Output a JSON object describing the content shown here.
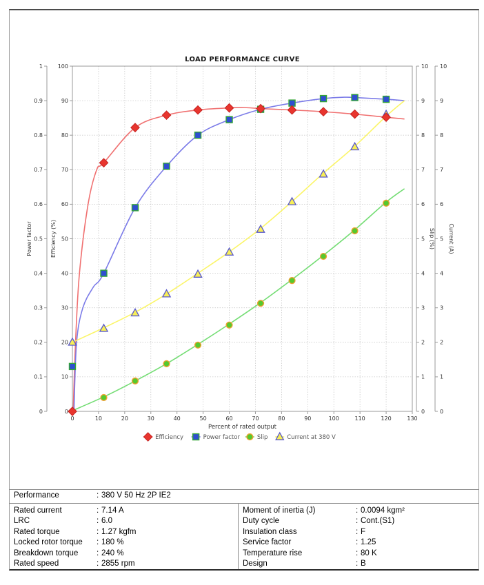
{
  "chart_data": {
    "type": "line",
    "title": "LOAD PERFORMANCE CURVE",
    "xlabel": "Percent of rated output",
    "x_range": [
      0,
      130
    ],
    "x_tick_step": 10,
    "grid": true,
    "legend_position": "bottom-center",
    "axes": {
      "left_outer": {
        "label": "Power factor",
        "range": [
          0,
          1
        ],
        "tick_step": 0.1
      },
      "left_inner": {
        "label": "Efficiency (%)",
        "range": [
          0,
          100
        ],
        "tick_step": 10
      },
      "right_inner": {
        "label": "Slip (%)",
        "range": [
          0,
          10
        ],
        "tick_step": 1
      },
      "right_outer": {
        "label": "Current (A)",
        "range": [
          0,
          10
        ],
        "tick_step": 1
      }
    },
    "series": [
      {
        "name": "Efficiency",
        "axis": "left_inner",
        "marker": "diamond",
        "line_color": "#f07070",
        "marker_fill": "#e8352e",
        "marker_stroke": "#c62321",
        "x": [
          0,
          12,
          24,
          36,
          48,
          60,
          72,
          84,
          96,
          108,
          120
        ],
        "values": [
          0,
          72,
          82.2,
          85.8,
          87.3,
          87.9,
          87.7,
          87.3,
          86.8,
          86.1,
          85.2
        ],
        "curve": [
          [
            0.3,
            0
          ],
          [
            1.2,
            20
          ],
          [
            2.7,
            40
          ],
          [
            6,
            60
          ],
          [
            9.3,
            70
          ],
          [
            12,
            72
          ],
          [
            24,
            82.2
          ],
          [
            36,
            85.8
          ],
          [
            48,
            87.3
          ],
          [
            60,
            87.9
          ],
          [
            66,
            88.0
          ],
          [
            72,
            87.7
          ],
          [
            84,
            87.3
          ],
          [
            96,
            86.8
          ],
          [
            108,
            86.1
          ],
          [
            120,
            85.2
          ],
          [
            127,
            84.7
          ]
        ]
      },
      {
        "name": "Power factor",
        "axis": "left_outer",
        "marker": "square",
        "line_color": "#7b7be8",
        "marker_fill": "#2f4ed1",
        "marker_stroke": "#35a635",
        "x": [
          0,
          12,
          24,
          36,
          48,
          60,
          72,
          84,
          96,
          108,
          120
        ],
        "values": [
          0.13,
          0.4,
          0.59,
          0.71,
          0.8,
          0.845,
          0.875,
          0.893,
          0.906,
          0.909,
          0.904
        ],
        "curve": [
          [
            0.6,
            0.0
          ],
          [
            1.6,
            0.2
          ],
          [
            4,
            0.3
          ],
          [
            8,
            0.36
          ],
          [
            12,
            0.4
          ],
          [
            24,
            0.59
          ],
          [
            36,
            0.71
          ],
          [
            48,
            0.8
          ],
          [
            60,
            0.845
          ],
          [
            72,
            0.875
          ],
          [
            84,
            0.893
          ],
          [
            96,
            0.906
          ],
          [
            104,
            0.91
          ],
          [
            108,
            0.909
          ],
          [
            120,
            0.904
          ],
          [
            127,
            0.9
          ]
        ]
      },
      {
        "name": "Slip",
        "axis": "right_inner",
        "marker": "circle",
        "line_color": "#74dd74",
        "marker_fill": "#55c92e",
        "marker_stroke": "#f0a030",
        "x": [
          12,
          24,
          36,
          48,
          60,
          72,
          84,
          96,
          108,
          120
        ],
        "values": [
          0.4,
          0.88,
          1.38,
          1.92,
          2.5,
          3.13,
          3.79,
          4.49,
          5.23,
          6.03
        ],
        "curve": [
          [
            0,
            0.02
          ],
          [
            12,
            0.42
          ],
          [
            24,
            0.88
          ],
          [
            36,
            1.38
          ],
          [
            48,
            1.94
          ],
          [
            60,
            2.53
          ],
          [
            72,
            3.15
          ],
          [
            84,
            3.82
          ],
          [
            96,
            4.52
          ],
          [
            108,
            5.26
          ],
          [
            120,
            6.06
          ],
          [
            127,
            6.45
          ]
        ]
      },
      {
        "name": "Current at 380 V",
        "axis": "right_outer",
        "marker": "triangle",
        "line_color": "#fbf névoa",
        "marker_fill": "#f8ef55",
        "marker_stroke": "#5858cc",
        "x": [
          0,
          12,
          24,
          36,
          48,
          60,
          72,
          84,
          96,
          108,
          120
        ],
        "values": [
          2.0,
          2.4,
          2.85,
          3.4,
          3.97,
          4.61,
          5.27,
          6.07,
          6.87,
          7.66,
          8.6
        ],
        "curve": [
          [
            0,
            2.0
          ],
          [
            12,
            2.42
          ],
          [
            24,
            2.87
          ],
          [
            36,
            3.4
          ],
          [
            48,
            4.0
          ],
          [
            60,
            4.62
          ],
          [
            72,
            5.3
          ],
          [
            84,
            6.08
          ],
          [
            96,
            6.9
          ],
          [
            108,
            7.68
          ],
          [
            120,
            8.55
          ],
          [
            127,
            9.0
          ]
        ]
      }
    ]
  },
  "table": {
    "separator": ":",
    "performance": {
      "label": "Performance",
      "value": "380 V 50 Hz 2P IE2"
    },
    "left_rows": [
      {
        "label": "Rated current",
        "value": "7.14 A"
      },
      {
        "label": "LRC",
        "value": "6.0"
      },
      {
        "label": "Rated torque",
        "value": "1.27 kgfm"
      },
      {
        "label": "Locked rotor torque",
        "value": "180 %"
      },
      {
        "label": "Breakdown torque",
        "value": "240 %"
      },
      {
        "label": "Rated speed",
        "value": "2855 rpm"
      }
    ],
    "right_rows": [
      {
        "label": "Moment of inertia (J)",
        "value": "0.0094 kgm²"
      },
      {
        "label": "Duty cycle",
        "value": "Cont.(S1)"
      },
      {
        "label": "Insulation class",
        "value": "F"
      },
      {
        "label": "Service factor",
        "value": "1.25"
      },
      {
        "label": "Temperature rise",
        "value": "80 K"
      },
      {
        "label": "Design",
        "value": "B"
      }
    ]
  }
}
